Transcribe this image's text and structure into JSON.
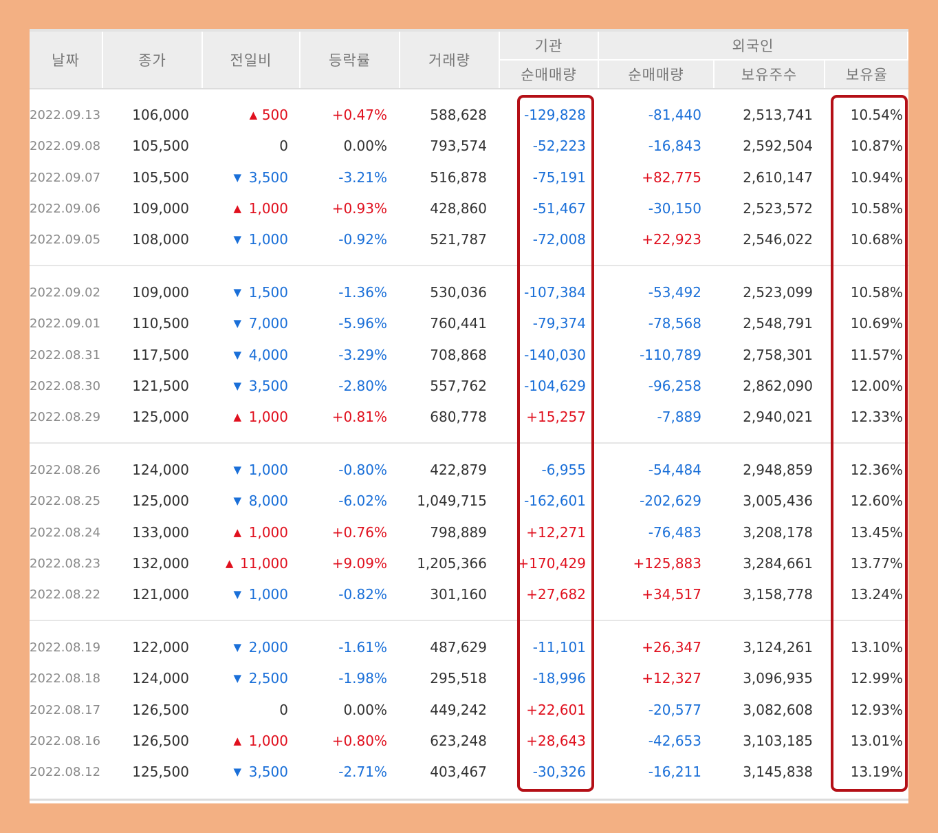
{
  "headers": {
    "date": "날짜",
    "close": "종가",
    "diff": "전일비",
    "rate": "등락률",
    "volume": "거래량",
    "institution_group": "기관",
    "institution_net": "순매매량",
    "foreign_group": "외국인",
    "foreign_net": "순매매량",
    "foreign_holdings": "보유주수",
    "foreign_ratio": "보유율"
  },
  "colors": {
    "up": "#e0101e",
    "down": "#1a6fd8",
    "highlight_border": "#b40f16",
    "frame": "#f3b083"
  },
  "icons": {
    "up": "up-triangle-icon",
    "down": "down-triangle-icon"
  },
  "groups": [
    {
      "rows": [
        {
          "date": "2022.09.13",
          "close": "106,000",
          "dir": "up",
          "diff": "500",
          "rate": "+0.47%",
          "volume": "588,628",
          "inst": "-129,828",
          "frn": "-81,440",
          "hold": "2,513,741",
          "ratio": "10.54%"
        },
        {
          "date": "2022.09.08",
          "close": "105,500",
          "dir": "none",
          "diff": "0",
          "rate": "0.00%",
          "volume": "793,574",
          "inst": "-52,223",
          "frn": "-16,843",
          "hold": "2,592,504",
          "ratio": "10.87%"
        },
        {
          "date": "2022.09.07",
          "close": "105,500",
          "dir": "down",
          "diff": "3,500",
          "rate": "-3.21%",
          "volume": "516,878",
          "inst": "-75,191",
          "frn": "+82,775",
          "hold": "2,610,147",
          "ratio": "10.94%"
        },
        {
          "date": "2022.09.06",
          "close": "109,000",
          "dir": "up",
          "diff": "1,000",
          "rate": "+0.93%",
          "volume": "428,860",
          "inst": "-51,467",
          "frn": "-30,150",
          "hold": "2,523,572",
          "ratio": "10.58%"
        },
        {
          "date": "2022.09.05",
          "close": "108,000",
          "dir": "down",
          "diff": "1,000",
          "rate": "-0.92%",
          "volume": "521,787",
          "inst": "-72,008",
          "frn": "+22,923",
          "hold": "2,546,022",
          "ratio": "10.68%"
        }
      ]
    },
    {
      "rows": [
        {
          "date": "2022.09.02",
          "close": "109,000",
          "dir": "down",
          "diff": "1,500",
          "rate": "-1.36%",
          "volume": "530,036",
          "inst": "-107,384",
          "frn": "-53,492",
          "hold": "2,523,099",
          "ratio": "10.58%"
        },
        {
          "date": "2022.09.01",
          "close": "110,500",
          "dir": "down",
          "diff": "7,000",
          "rate": "-5.96%",
          "volume": "760,441",
          "inst": "-79,374",
          "frn": "-78,568",
          "hold": "2,548,791",
          "ratio": "10.69%"
        },
        {
          "date": "2022.08.31",
          "close": "117,500",
          "dir": "down",
          "diff": "4,000",
          "rate": "-3.29%",
          "volume": "708,868",
          "inst": "-140,030",
          "frn": "-110,789",
          "hold": "2,758,301",
          "ratio": "11.57%"
        },
        {
          "date": "2022.08.30",
          "close": "121,500",
          "dir": "down",
          "diff": "3,500",
          "rate": "-2.80%",
          "volume": "557,762",
          "inst": "-104,629",
          "frn": "-96,258",
          "hold": "2,862,090",
          "ratio": "12.00%"
        },
        {
          "date": "2022.08.29",
          "close": "125,000",
          "dir": "up",
          "diff": "1,000",
          "rate": "+0.81%",
          "volume": "680,778",
          "inst": "+15,257",
          "frn": "-7,889",
          "hold": "2,940,021",
          "ratio": "12.33%"
        }
      ]
    },
    {
      "rows": [
        {
          "date": "2022.08.26",
          "close": "124,000",
          "dir": "down",
          "diff": "1,000",
          "rate": "-0.80%",
          "volume": "422,879",
          "inst": "-6,955",
          "frn": "-54,484",
          "hold": "2,948,859",
          "ratio": "12.36%"
        },
        {
          "date": "2022.08.25",
          "close": "125,000",
          "dir": "down",
          "diff": "8,000",
          "rate": "-6.02%",
          "volume": "1,049,715",
          "inst": "-162,601",
          "frn": "-202,629",
          "hold": "3,005,436",
          "ratio": "12.60%"
        },
        {
          "date": "2022.08.24",
          "close": "133,000",
          "dir": "up",
          "diff": "1,000",
          "rate": "+0.76%",
          "volume": "798,889",
          "inst": "+12,271",
          "frn": "-76,483",
          "hold": "3,208,178",
          "ratio": "13.45%"
        },
        {
          "date": "2022.08.23",
          "close": "132,000",
          "dir": "up",
          "diff": "11,000",
          "rate": "+9.09%",
          "volume": "1,205,366",
          "inst": "+170,429",
          "frn": "+125,883",
          "hold": "3,284,661",
          "ratio": "13.77%"
        },
        {
          "date": "2022.08.22",
          "close": "121,000",
          "dir": "down",
          "diff": "1,000",
          "rate": "-0.82%",
          "volume": "301,160",
          "inst": "+27,682",
          "frn": "+34,517",
          "hold": "3,158,778",
          "ratio": "13.24%"
        }
      ]
    },
    {
      "rows": [
        {
          "date": "2022.08.19",
          "close": "122,000",
          "dir": "down",
          "diff": "2,000",
          "rate": "-1.61%",
          "volume": "487,629",
          "inst": "-11,101",
          "frn": "+26,347",
          "hold": "3,124,261",
          "ratio": "13.10%"
        },
        {
          "date": "2022.08.18",
          "close": "124,000",
          "dir": "down",
          "diff": "2,500",
          "rate": "-1.98%",
          "volume": "295,518",
          "inst": "-18,996",
          "frn": "+12,327",
          "hold": "3,096,935",
          "ratio": "12.99%"
        },
        {
          "date": "2022.08.17",
          "close": "126,500",
          "dir": "none",
          "diff": "0",
          "rate": "0.00%",
          "volume": "449,242",
          "inst": "+22,601",
          "frn": "-20,577",
          "hold": "3,082,608",
          "ratio": "12.93%"
        },
        {
          "date": "2022.08.16",
          "close": "126,500",
          "dir": "up",
          "diff": "1,000",
          "rate": "+0.80%",
          "volume": "623,248",
          "inst": "+28,643",
          "frn": "-42,653",
          "hold": "3,103,185",
          "ratio": "13.01%"
        },
        {
          "date": "2022.08.12",
          "close": "125,500",
          "dir": "down",
          "diff": "3,500",
          "rate": "-2.71%",
          "volume": "403,467",
          "inst": "-30,326",
          "frn": "-16,211",
          "hold": "3,145,838",
          "ratio": "13.19%"
        }
      ]
    }
  ]
}
